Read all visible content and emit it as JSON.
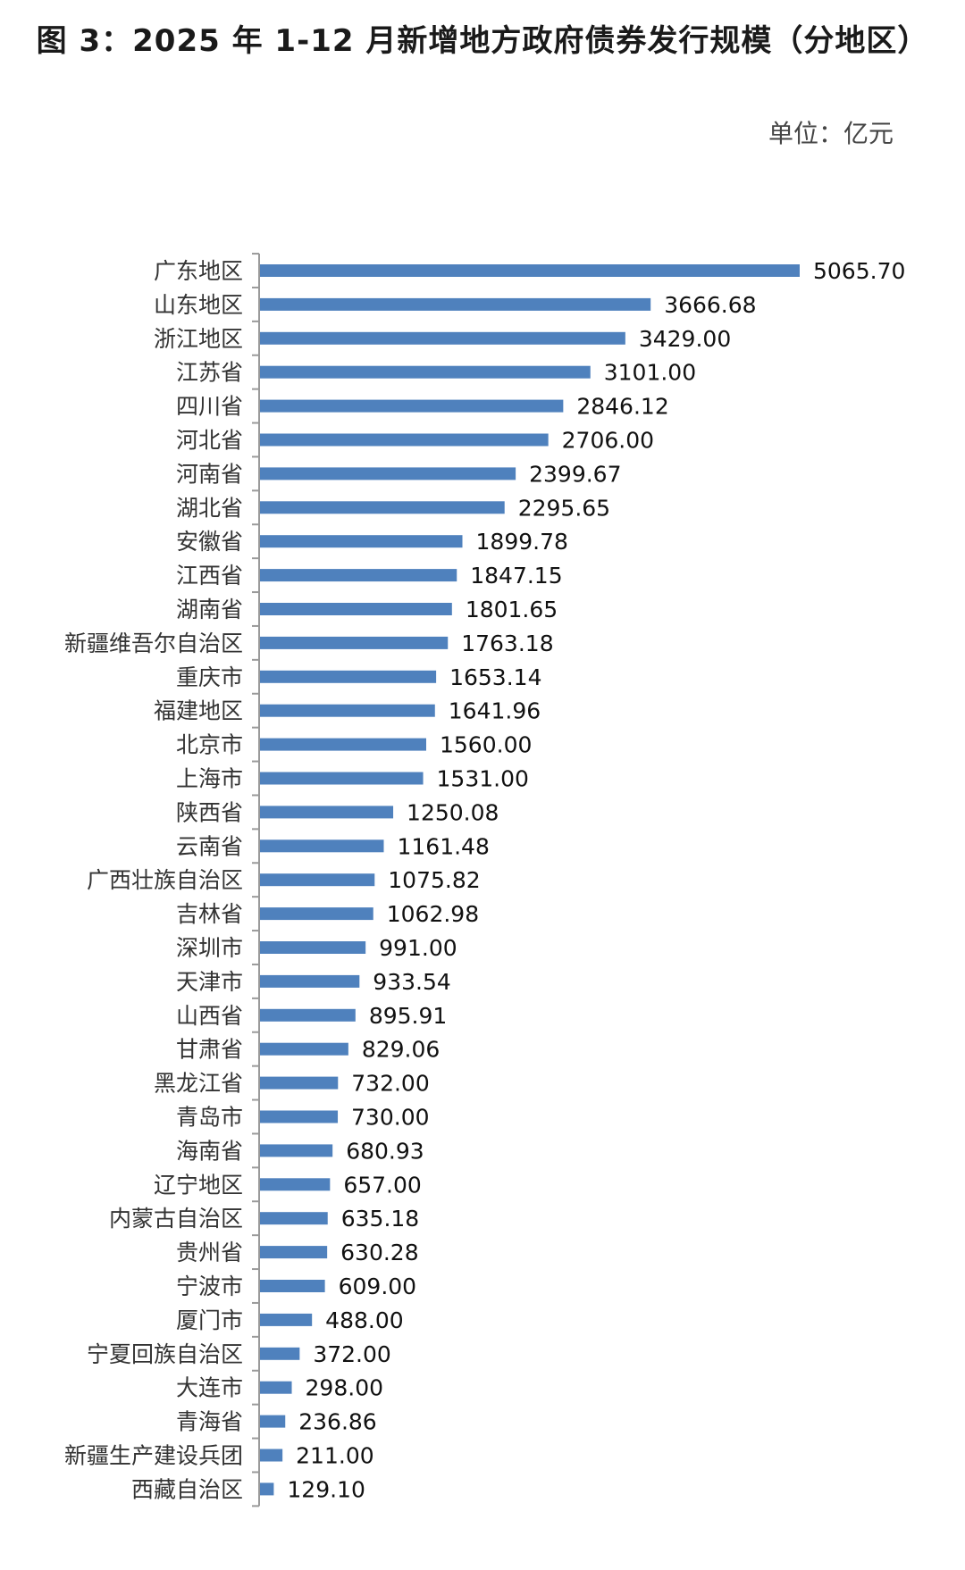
{
  "chart_data": {
    "type": "bar",
    "orientation": "horizontal",
    "title": "图 3：2025 年 1-12 月新增地方政府债券发行规模（分地区）",
    "unit": "单位：亿元",
    "xlabel": "",
    "ylabel": "",
    "grid": false,
    "legend": "none",
    "bar_color": "#4f81bd",
    "categories": [
      "广东地区",
      "山东地区",
      "浙江地区",
      "江苏省",
      "四川省",
      "河北省",
      "河南省",
      "湖北省",
      "安徽省",
      "江西省",
      "湖南省",
      "新疆维吾尔自治区",
      "重庆市",
      "福建地区",
      "北京市",
      "上海市",
      "陕西省",
      "云南省",
      "广西壮族自治区",
      "吉林省",
      "深圳市",
      "天津市",
      "山西省",
      "甘肃省",
      "黑龙江省",
      "青岛市",
      "海南省",
      "辽宁地区",
      "内蒙古自治区",
      "贵州省",
      "宁波市",
      "厦门市",
      "宁夏回族自治区",
      "大连市",
      "青海省",
      "新疆生产建设兵团",
      "西藏自治区"
    ],
    "values": [
      5065.7,
      3666.68,
      3429.0,
      3101.0,
      2846.12,
      2706.0,
      2399.67,
      2295.65,
      1899.78,
      1847.15,
      1801.65,
      1763.18,
      1653.14,
      1641.96,
      1560.0,
      1531.0,
      1250.08,
      1161.48,
      1075.82,
      1062.98,
      991.0,
      933.54,
      895.91,
      829.06,
      732.0,
      730.0,
      680.93,
      657.0,
      635.18,
      630.28,
      609.0,
      488.0,
      372.0,
      298.0,
      236.86,
      211.0,
      129.1
    ],
    "value_labels": [
      "5065.70",
      "3666.68",
      "3429.00",
      "3101.00",
      "2846.12",
      "2706.00",
      "2399.67",
      "2295.65",
      "1899.78",
      "1847.15",
      "1801.65",
      "1763.18",
      "1653.14",
      "1641.96",
      "1560.00",
      "1531.00",
      "1250.08",
      "1161.48",
      "1075.82",
      "1062.98",
      "991.00",
      "933.54",
      "895.91",
      "829.06",
      "732.00",
      "730.00",
      "680.93",
      "657.00",
      "635.18",
      "630.28",
      "609.00",
      "488.00",
      "372.00",
      "298.00",
      "236.86",
      "211.00",
      "129.10"
    ],
    "xlim": [
      0,
      5065.7
    ]
  }
}
